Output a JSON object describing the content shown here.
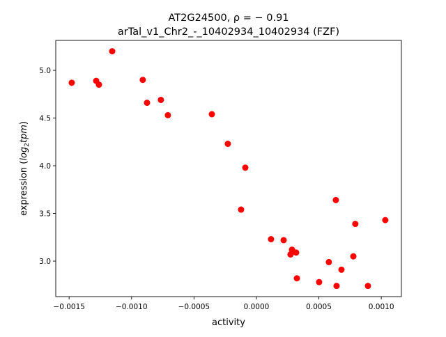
{
  "chart_data": {
    "type": "scatter",
    "title_line1": "AT2G24500, ρ = − 0.91",
    "title_line2": "arTal_v1_Chr2_-_10402934_10402934 (FZF)",
    "xlabel": "activity",
    "ylabel_main": "expression (",
    "ylabel_italic": "log",
    "ylabel_sub": "2",
    "ylabel_italic2": "tpm",
    "ylabel_end": ")",
    "xlim": [
      -0.001607,
      0.001161
    ],
    "ylim": [
      2.628,
      5.314
    ],
    "xticks": [
      -0.0015,
      -0.001,
      -0.0005,
      0.0,
      0.0005,
      0.001
    ],
    "xtick_labels": [
      "−0.0015",
      "−0.0010",
      "−0.0005",
      "0.0000",
      "0.0005",
      "0.0010"
    ],
    "yticks": [
      3.0,
      3.5,
      4.0,
      4.5,
      5.0
    ],
    "ytick_labels": [
      "3.0",
      "3.5",
      "4.0",
      "4.5",
      "5.0"
    ],
    "grid": false,
    "marker_color": "#ff0000",
    "points": [
      [
        -0.001479,
        4.87
      ],
      [
        -0.001283,
        4.89
      ],
      [
        -0.001261,
        4.85
      ],
      [
        -0.001155,
        5.2
      ],
      [
        -0.00091,
        4.9
      ],
      [
        -0.000876,
        4.66
      ],
      [
        -0.000765,
        4.69
      ],
      [
        -0.000709,
        4.53
      ],
      [
        -0.000357,
        4.54
      ],
      [
        -0.000229,
        4.23
      ],
      [
        -8.9e-05,
        3.98
      ],
      [
        -0.000123,
        3.54
      ],
      [
        0.000117,
        3.23
      ],
      [
        0.000218,
        3.22
      ],
      [
        0.000285,
        3.12
      ],
      [
        0.000273,
        3.07
      ],
      [
        0.000318,
        3.09
      ],
      [
        0.000324,
        2.82
      ],
      [
        0.000502,
        2.78
      ],
      [
        0.00058,
        2.99
      ],
      [
        0.000636,
        3.64
      ],
      [
        0.000642,
        2.74
      ],
      [
        0.000681,
        2.91
      ],
      [
        0.000776,
        3.05
      ],
      [
        0.000792,
        3.39
      ],
      [
        0.000893,
        2.74
      ],
      [
        0.001032,
        3.43
      ]
    ]
  }
}
